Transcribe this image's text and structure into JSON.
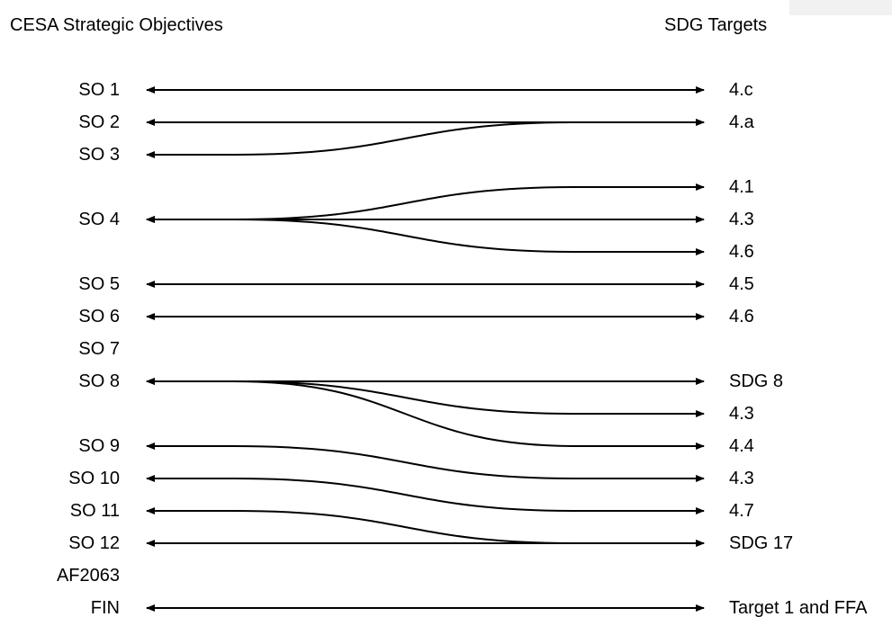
{
  "headers": {
    "left": "CESA Strategic Objectives",
    "right": "SDG Targets"
  },
  "objectives": [
    "SO 1",
    "SO 2",
    "SO 3",
    "",
    "SO 4",
    "",
    "SO 5",
    "SO 6",
    "SO 7",
    "SO 8",
    "",
    "SO 9",
    "SO 10",
    "SO 11",
    "SO 12",
    "AF2063",
    "FIN"
  ],
  "targets": [
    "4.c",
    "4.a",
    "",
    "4.1",
    "4.3",
    "4.6",
    "4.5",
    "4.6",
    "",
    "SDG 8",
    "4.3",
    "4.4",
    "4.3",
    "4.7",
    "SDG 17",
    "",
    "Target 1 and FFA"
  ],
  "links": [
    {
      "from": 0,
      "to": 0
    },
    {
      "from": 1,
      "to": 1
    },
    {
      "from": 2,
      "to": 1
    },
    {
      "from": 4,
      "to": 3
    },
    {
      "from": 4,
      "to": 4
    },
    {
      "from": 4,
      "to": 5
    },
    {
      "from": 6,
      "to": 6
    },
    {
      "from": 7,
      "to": 7
    },
    {
      "from": 9,
      "to": 9
    },
    {
      "from": 9,
      "to": 10
    },
    {
      "from": 9,
      "to": 11
    },
    {
      "from": 11,
      "to": 12
    },
    {
      "from": 12,
      "to": 13
    },
    {
      "from": 13,
      "to": 14
    },
    {
      "from": 14,
      "to": 14
    },
    {
      "from": 16,
      "to": 16
    }
  ],
  "colors": {
    "line": "#000000",
    "corner_box": "#f1f1f1"
  }
}
